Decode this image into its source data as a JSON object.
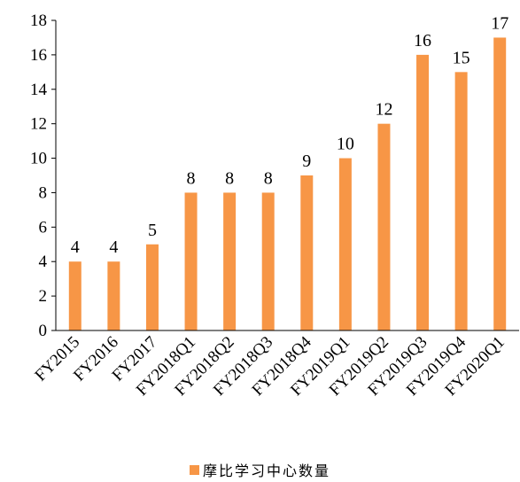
{
  "chart_data": {
    "type": "bar",
    "categories": [
      "FY2015",
      "FY2016",
      "FY2017",
      "FY2018Q1",
      "FY2018Q2",
      "FY2018Q3",
      "FY2018Q4",
      "FY2019Q1",
      "FY2019Q2",
      "FY2019Q3",
      "FY2019Q4",
      "FY2020Q1"
    ],
    "series": [
      {
        "name": "摩比学习中心数量",
        "values": [
          4,
          4,
          5,
          8,
          8,
          8,
          9,
          10,
          12,
          16,
          15,
          17
        ]
      }
    ],
    "ylim": [
      0,
      18
    ],
    "yticks": [
      0,
      2,
      4,
      6,
      8,
      10,
      12,
      14,
      16,
      18
    ],
    "grid": false,
    "legend": "bottom-center",
    "title": "",
    "xlabel": "",
    "ylabel": "",
    "bar_color": "#F79646"
  }
}
